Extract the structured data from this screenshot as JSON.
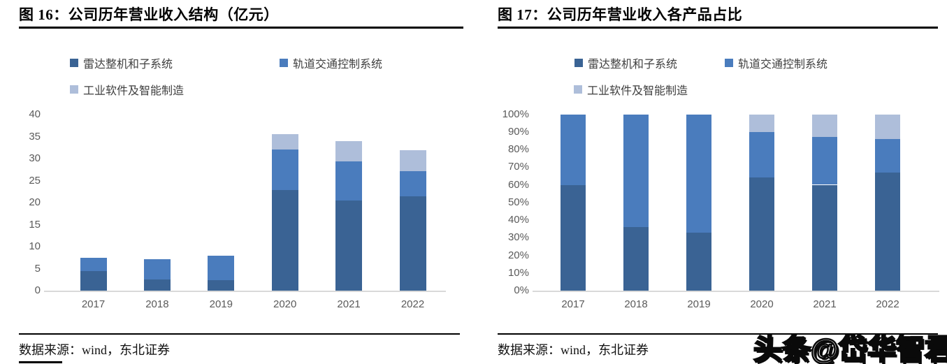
{
  "watermark": {
    "text": "头条@岱华智君"
  },
  "colors": {
    "series_dark": "#3A6394",
    "series_medium": "#4A7CBD",
    "series_light": "#AEBEDA",
    "axis_line": "#D9D9D9",
    "tick_text": "#5A5A5A",
    "rule": "#000000"
  },
  "chart_data": [
    {
      "id": "revenue-structure",
      "type": "bar",
      "stacked": true,
      "title": "图 16：公司历年营业收入结构（亿元）",
      "source_note": "数据来源：wind，东北证券",
      "categories": [
        "2017",
        "2018",
        "2019",
        "2020",
        "2021",
        "2022"
      ],
      "series": [
        {
          "name": "雷达整机和子系统",
          "color": "#3A6394",
          "values": [
            4.5,
            2.5,
            2.4,
            22.8,
            20.4,
            21.4
          ]
        },
        {
          "name": "轨道交通控制系统",
          "color": "#4A7CBD",
          "values": [
            3.0,
            4.6,
            5.5,
            9.2,
            9.0,
            5.8
          ]
        },
        {
          "name": "工业软件及智能制造",
          "color": "#AEBEDA",
          "values": [
            0,
            0,
            0,
            3.6,
            4.5,
            4.7
          ]
        }
      ],
      "ylim": [
        0,
        40
      ],
      "ytick_step": 5,
      "ytick_labels": [
        "0",
        "5",
        "10",
        "15",
        "20",
        "25",
        "30",
        "35",
        "40"
      ],
      "grid": false,
      "legend_position": "top",
      "xlabel": "",
      "ylabel": ""
    },
    {
      "id": "revenue-share",
      "type": "bar",
      "stacked": true,
      "percent": true,
      "title": "图 17：公司历年营业收入各产品占比",
      "source_note": "数据来源：wind，东北证券",
      "categories": [
        "2017",
        "2018",
        "2019",
        "2020",
        "2021",
        "2022"
      ],
      "series": [
        {
          "name": "雷达整机和子系统",
          "color": "#3A6394",
          "values": [
            60,
            36,
            33,
            64,
            60,
            67
          ]
        },
        {
          "name": "轨道交通控制系统",
          "color": "#4A7CBD",
          "values": [
            40,
            64,
            67,
            26,
            27,
            19
          ]
        },
        {
          "name": "工业软件及智能制造",
          "color": "#AEBEDA",
          "values": [
            0,
            0,
            0,
            10,
            13,
            14
          ]
        }
      ],
      "ylim": [
        0,
        100
      ],
      "ytick_step": 10,
      "ytick_labels": [
        "0%",
        "10%",
        "20%",
        "30%",
        "40%",
        "50%",
        "60%",
        "70%",
        "80%",
        "90%",
        "100%"
      ],
      "grid": false,
      "legend_position": "top",
      "xlabel": "",
      "ylabel": ""
    }
  ]
}
